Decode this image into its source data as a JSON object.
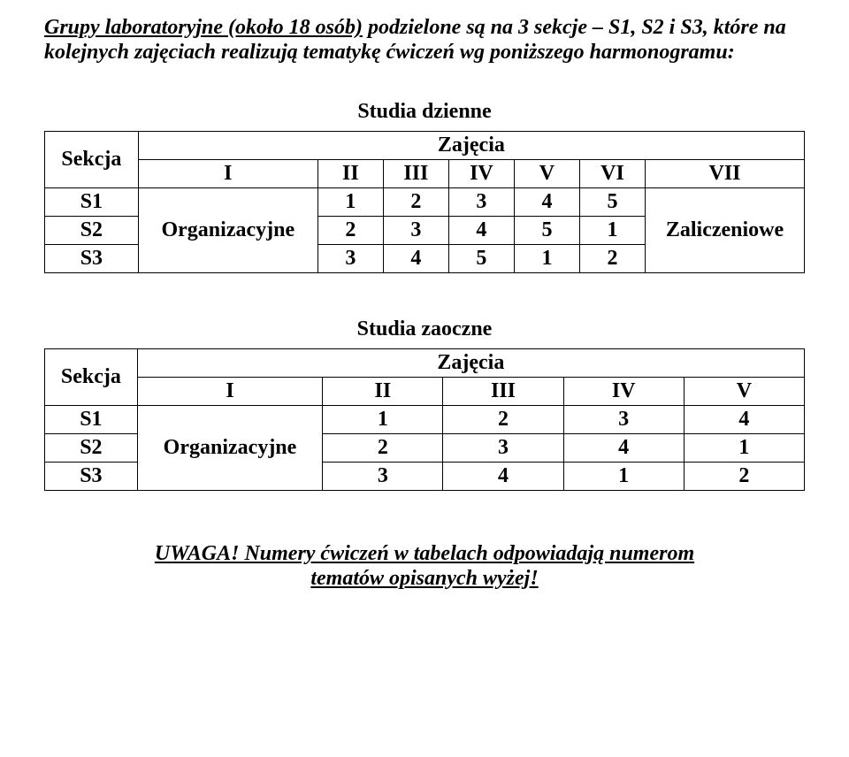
{
  "intro": {
    "underlined": "Grupy laboratoryjne (około 18 osób)",
    "rest": " podzielone są na 3 sekcje – S1, S2 i S3, które na kolejnych zajęciach realizują tematykę ćwiczeń wg poniższego harmonogramu:"
  },
  "table1": {
    "caption": "Studia dzienne",
    "sekcja_header": "Sekcja",
    "zajecia_header": "Zajęcia",
    "col_headers": [
      "I",
      "II",
      "III",
      "IV",
      "V",
      "VI",
      "VII"
    ],
    "merge_col1_label": "Organizacyjne",
    "merge_vii_label": "Zaliczeniowe",
    "rows": [
      {
        "sekcja": "S1",
        "vals": [
          "1",
          "2",
          "3",
          "4",
          "5"
        ]
      },
      {
        "sekcja": "S2",
        "vals": [
          "2",
          "3",
          "4",
          "5",
          "1"
        ]
      },
      {
        "sekcja": "S3",
        "vals": [
          "3",
          "4",
          "5",
          "1",
          "2"
        ]
      }
    ]
  },
  "table2": {
    "caption": "Studia zaoczne",
    "sekcja_header": "Sekcja",
    "zajecia_header": "Zajęcia",
    "col_headers": [
      "I",
      "II",
      "III",
      "IV",
      "V"
    ],
    "merge_col1_label": "Organizacyjne",
    "rows": [
      {
        "sekcja": "S1",
        "vals": [
          "1",
          "2",
          "3",
          "4"
        ]
      },
      {
        "sekcja": "S2",
        "vals": [
          "2",
          "3",
          "4",
          "1"
        ]
      },
      {
        "sekcja": "S3",
        "vals": [
          "3",
          "4",
          "1",
          "2"
        ]
      }
    ]
  },
  "footer": {
    "line1": "UWAGA! Numery ćwiczeń w tabelach odpowiadają numerom",
    "line2": "tematów opisanych wyżej!"
  }
}
